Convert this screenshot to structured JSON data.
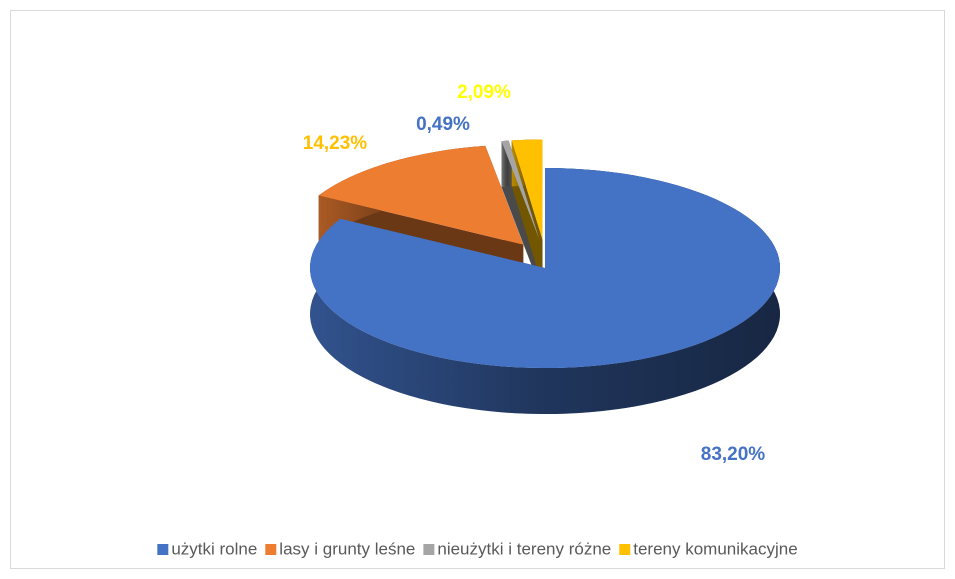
{
  "chart_data": {
    "type": "pie",
    "categories": [
      "użytki rolne",
      "lasy i grunty leśne",
      "nieużytki i tereny różne",
      "tereny komunikacyjne"
    ],
    "values": [
      83.2,
      14.23,
      0.49,
      2.09
    ],
    "value_labels": [
      "83,20%",
      "14,23%",
      "0,49%",
      "2,09%"
    ],
    "colors": [
      "#4472c4",
      "#ed7d31",
      "#a5a5a5",
      "#ffc000"
    ],
    "legend": "bottom"
  }
}
